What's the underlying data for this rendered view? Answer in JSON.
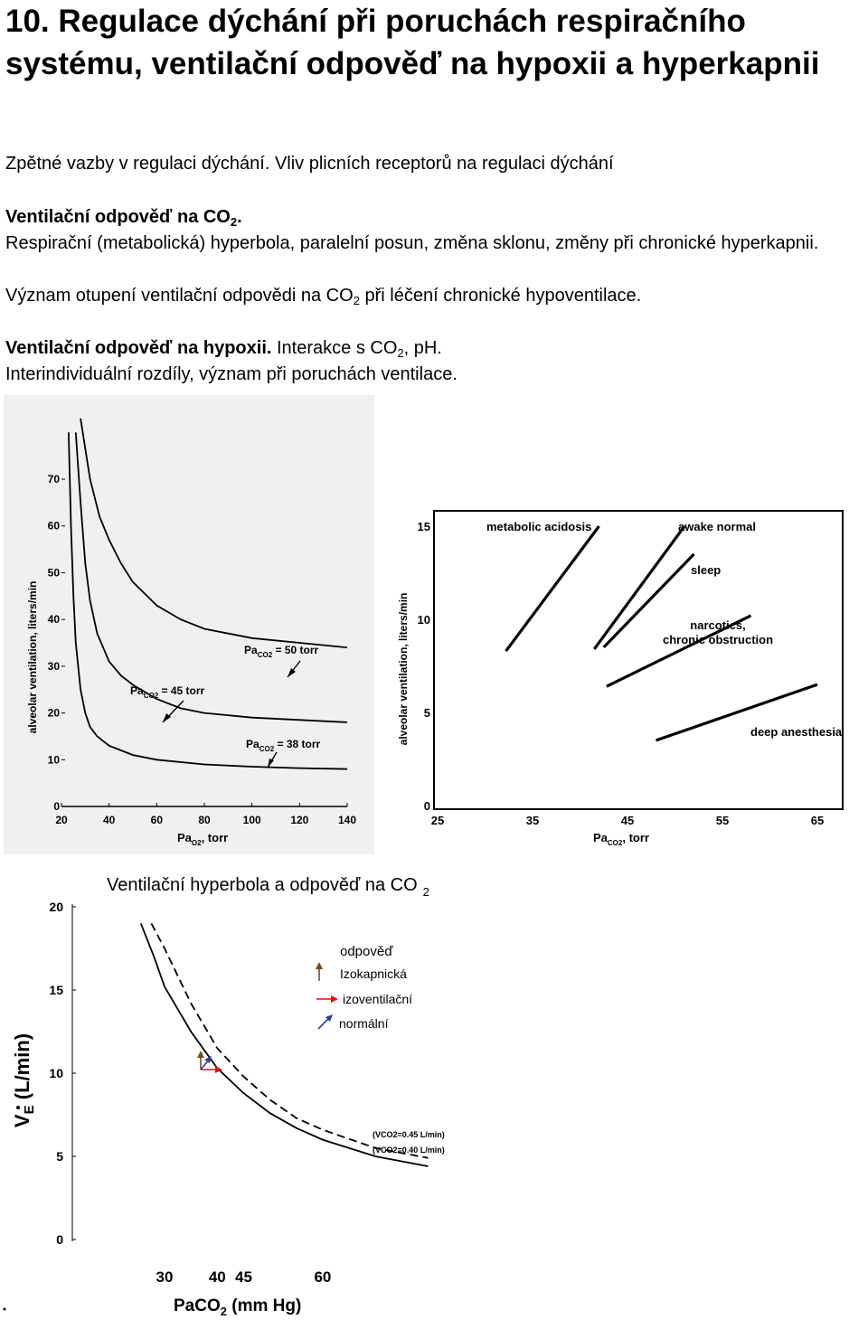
{
  "heading": "10. Regulace dýchání při poruchách respiračního systému, ventilační odpověď na hypoxii a hyperkapnii",
  "lines": {
    "l1": "Zpětné vazby v regulaci dýchání. Vliv plicních receptorů na regulaci dýchání",
    "l2_bold": "Ventilační odpověď na CO",
    "l2_sub": "2",
    "l2_tail": ".",
    "l3": "Respirační (metabolická) hyperbola, paralelní posun, změna sklonu, změny při chronické hyperkapnii.",
    "l4_a": "Význam otupení ventilační odpovědi na CO",
    "l4_sub": "2",
    "l4_b": " při léčení chronické hypoventilace.",
    "l5_bold": "Ventilační odpověď na hypoxii.",
    "l5_a": " Interakce s CO",
    "l5_sub": "2",
    "l5_b": ", pH.",
    "l6": "Interindividuální rozdíly, význam při poruchách ventilace."
  },
  "chart_data": [
    {
      "type": "line",
      "ylabel": "alveolar ventilation, liters/min",
      "xlabel_main": "Pa",
      "xlabel_sub": "O2",
      "xlabel_tail": ", torr",
      "xlim": [
        20,
        140
      ],
      "ylim": [
        0,
        70
      ],
      "xticks": [
        "20",
        "40",
        "60",
        "80",
        "100",
        "120",
        "140"
      ],
      "yticks": [
        "0",
        "10",
        "20",
        "30",
        "40",
        "50",
        "60",
        "70"
      ],
      "annotations": [
        {
          "main": "Pa",
          "sub": "CO2",
          "tail": " = 50 torr"
        },
        {
          "main": "Pa",
          "sub": "CO2",
          "tail": " = 45 torr"
        },
        {
          "main": "Pa",
          "sub": "CO2",
          "tail": " = 38 torr"
        }
      ],
      "series": [
        {
          "x": [
            28,
            32,
            36,
            40,
            45,
            50,
            60,
            70,
            80,
            100,
            120,
            140
          ],
          "y": [
            85,
            70,
            62,
            57,
            52,
            48,
            43,
            40,
            38,
            36,
            35,
            34
          ]
        },
        {
          "x": [
            26,
            28,
            30,
            32,
            35,
            40,
            45,
            50,
            60,
            70,
            80,
            100,
            120,
            140
          ],
          "y": [
            80,
            65,
            52,
            44,
            37,
            31,
            28,
            26,
            23,
            21,
            20,
            19,
            18.5,
            18
          ]
        },
        {
          "x": [
            23,
            24,
            25,
            26,
            28,
            30,
            32,
            35,
            40,
            50,
            60,
            80,
            100,
            120,
            140
          ],
          "y": [
            80,
            60,
            45,
            35,
            25,
            20,
            17,
            15,
            13,
            11,
            10,
            9,
            8.5,
            8.2,
            8
          ]
        }
      ]
    },
    {
      "type": "line",
      "ylabel": "alveolar ventilation, liters/min",
      "xlabel_main": "Pa",
      "xlabel_sub": "CO2",
      "xlabel_tail": ", torr",
      "xlim": [
        25,
        65
      ],
      "ylim": [
        0,
        15
      ],
      "xticks": [
        "25",
        "35",
        "45",
        "55",
        "65"
      ],
      "yticks": [
        "0",
        "5",
        "10",
        "15"
      ],
      "series": [
        {
          "name": "metabolic acidosis",
          "x": [
            32.2,
            42
          ],
          "y": [
            8.3,
            15
          ]
        },
        {
          "name": "awake normal",
          "x": [
            41.5,
            51
          ],
          "y": [
            8.4,
            15
          ]
        },
        {
          "name": "sleep",
          "x": [
            42.5,
            52
          ],
          "y": [
            8.5,
            13.5
          ]
        },
        {
          "name": "narcotics, chronic obstruction",
          "x": [
            42.8,
            58
          ],
          "y": [
            6.4,
            10.2
          ]
        },
        {
          "name": "deep anesthesia",
          "x": [
            48,
            65
          ],
          "y": [
            3.5,
            6.5
          ]
        }
      ]
    },
    {
      "type": "line",
      "title": "Ventilační hyperbola a odpověď na CO",
      "title_sub": "2",
      "ylabel": "VE (L/min)",
      "xlabel": "PaCO2 (mm Hg)",
      "xlabel_main": "PaCO",
      "xlabel_sub": "2",
      "xlabel_tail": " (mm Hg)",
      "xlim": [
        20,
        80
      ],
      "ylim": [
        0,
        20
      ],
      "xticks": [
        "30",
        "40",
        "45",
        "60"
      ],
      "yticks": [
        "0",
        "5",
        "10",
        "15",
        "20"
      ],
      "series": [
        {
          "name": "(VCO2=0.45 L/min)",
          "style": "dashed",
          "x": [
            27.5,
            30,
            35,
            40,
            45,
            50,
            55,
            60,
            70,
            80
          ],
          "y": [
            19,
            17.5,
            14.2,
            11.5,
            9.8,
            8.4,
            7.3,
            6.6,
            5.5,
            4.9
          ]
        },
        {
          "name": "(VCO2=0.40 L/min)",
          "style": "solid",
          "x": [
            25.5,
            28,
            30,
            35,
            40,
            45,
            50,
            55,
            60,
            70,
            80
          ],
          "y": [
            19,
            17,
            15.2,
            12.5,
            10.3,
            8.8,
            7.6,
            6.7,
            6,
            5,
            4.4
          ]
        }
      ],
      "legend": [
        {
          "label": "odpověď",
          "color": ""
        },
        {
          "label": "Izokapnická",
          "color": "#7a4a1e"
        },
        {
          "label": "izoventilační",
          "color": "#e01010"
        },
        {
          "label": "normální",
          "color": "#2a3aa8"
        }
      ]
    }
  ]
}
